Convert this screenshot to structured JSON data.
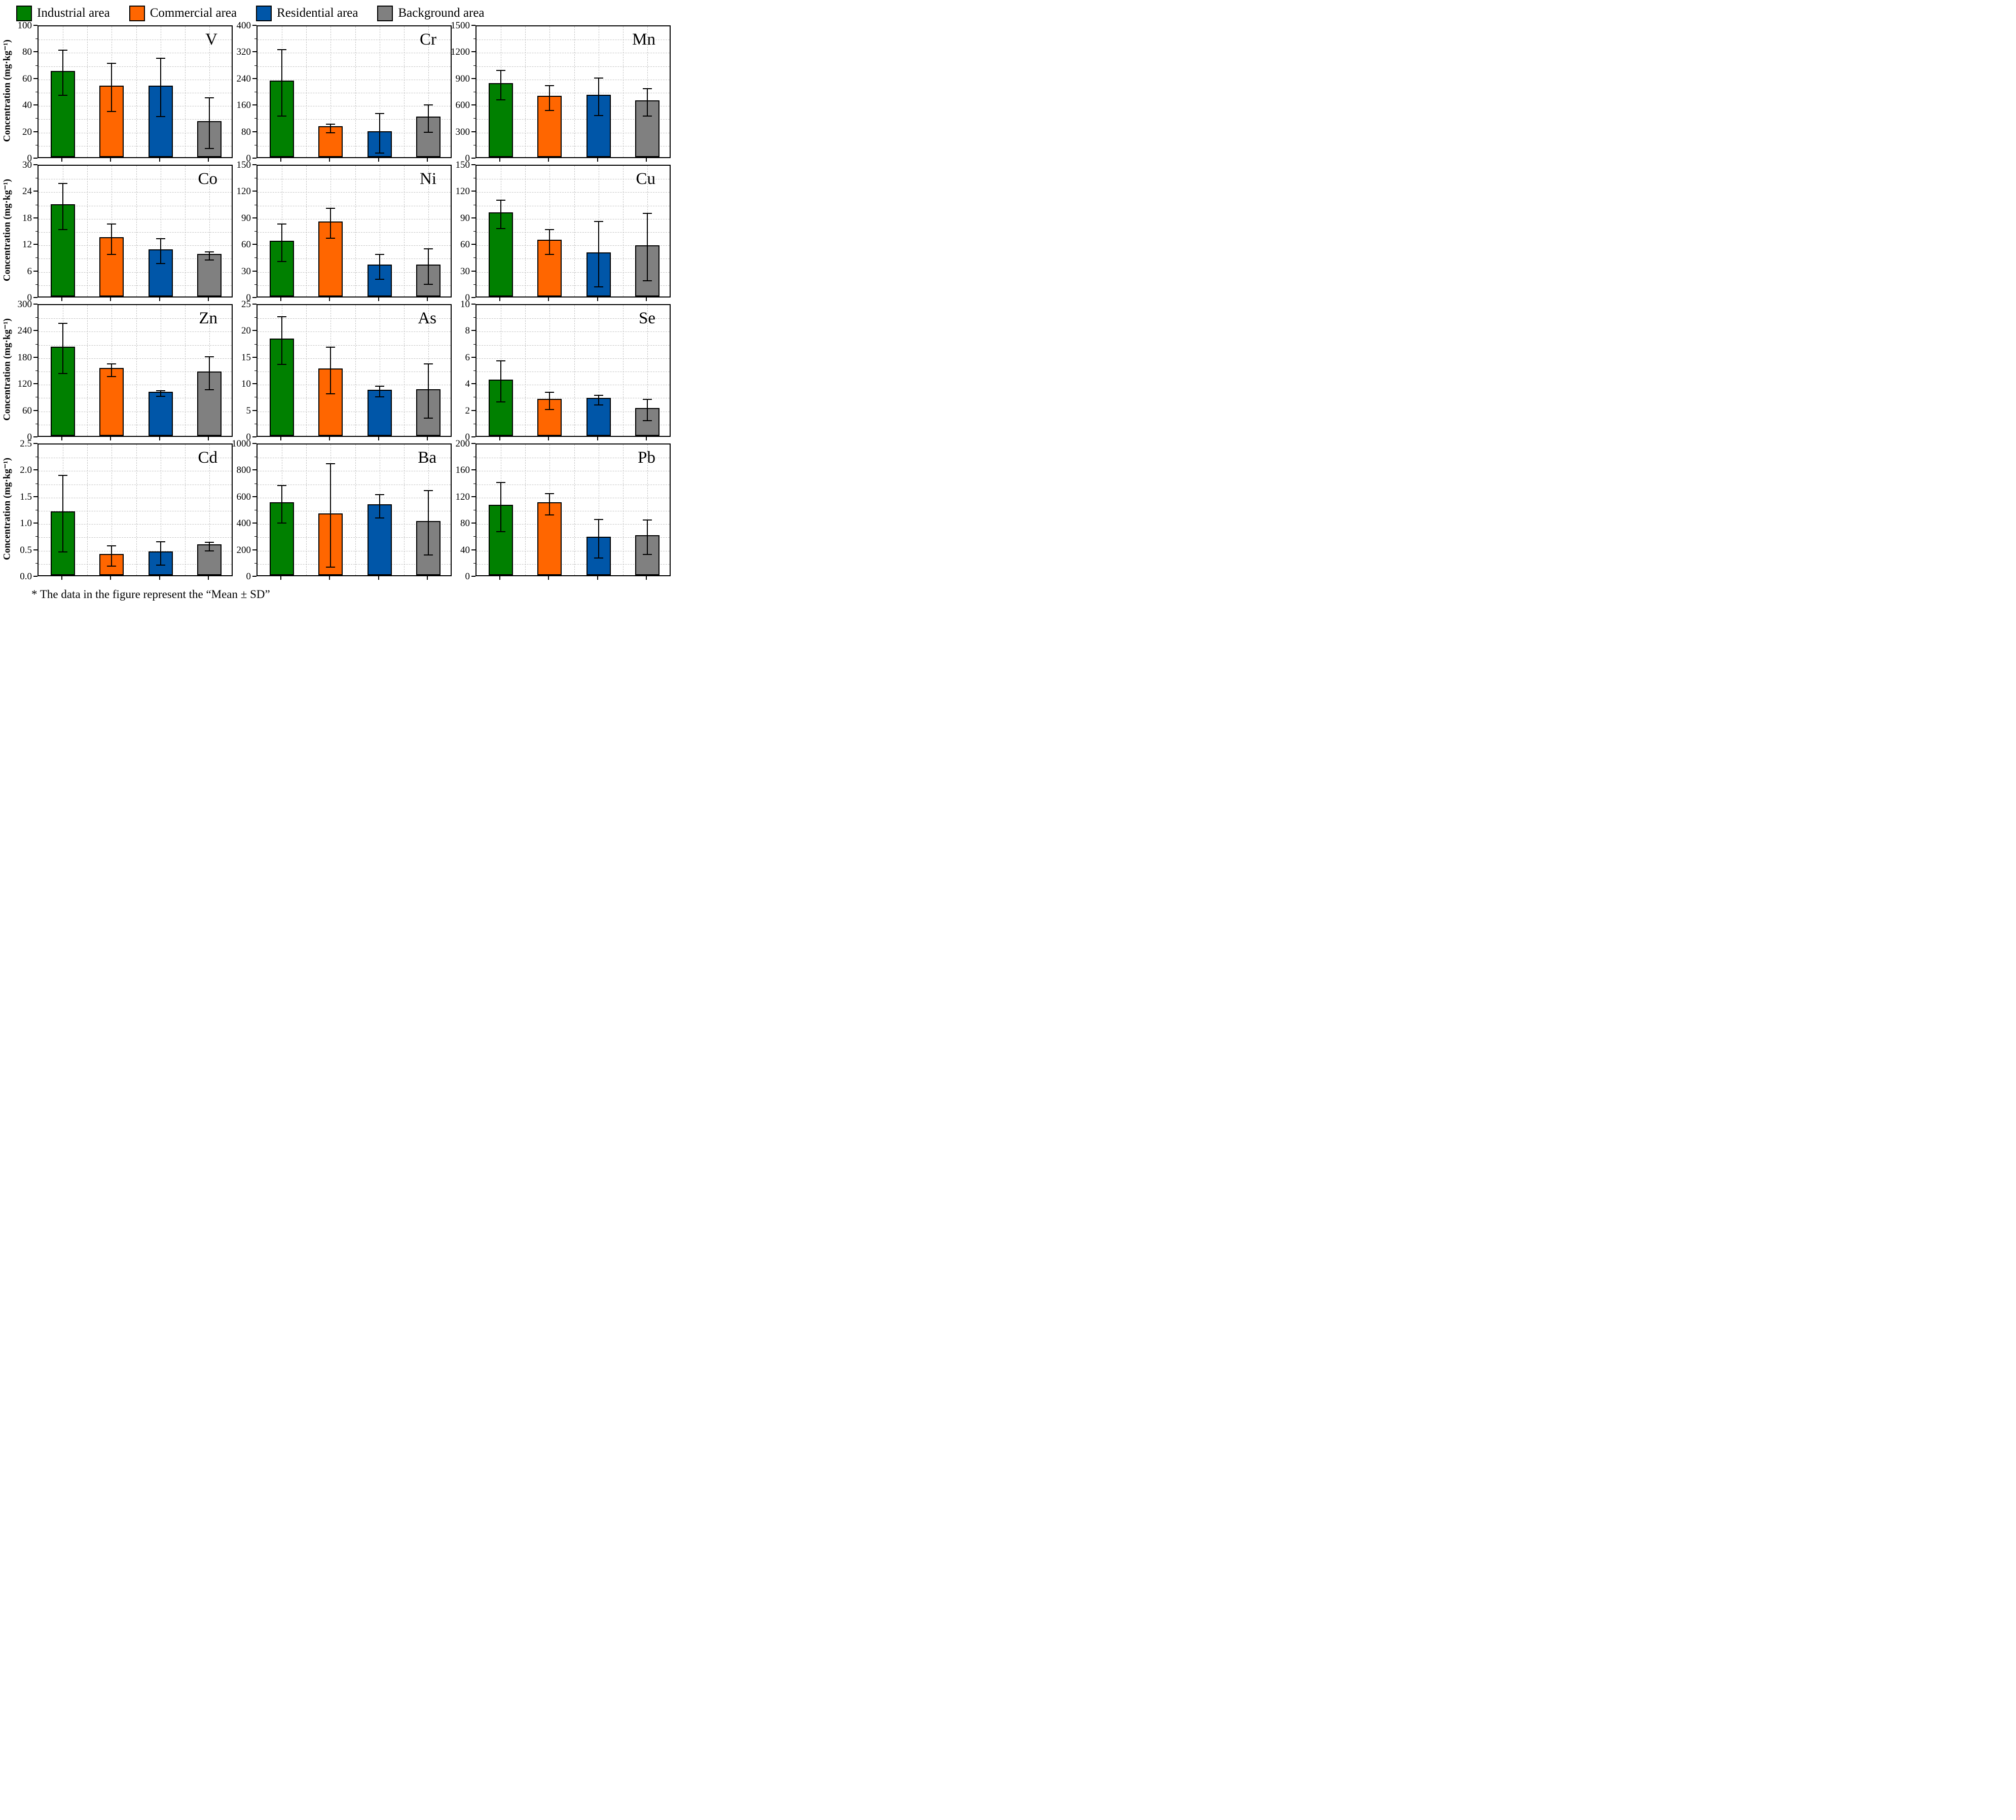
{
  "legend": {
    "items": [
      {
        "label": "Industrial area",
        "color": "#008000"
      },
      {
        "label": "Commercial area",
        "color": "#FF6600"
      },
      {
        "label": "Residential area",
        "color": "#0056A8"
      },
      {
        "label": "Background area",
        "color": "#808080"
      }
    ]
  },
  "axis": {
    "y_label": "Concentration (mg·kg⁻¹)"
  },
  "footnote": "* The data in the figure represent the “Mean ± SD”",
  "categories": [
    "Industrial area",
    "Commercial area",
    "Residential area",
    "Background area"
  ],
  "chart_data": [
    {
      "type": "bar",
      "element": "V",
      "ylim": [
        0,
        100
      ],
      "yticks": [
        0,
        20,
        40,
        60,
        80,
        100
      ],
      "ytick_labels": [
        "0",
        "20",
        "40",
        "60",
        "80",
        "100"
      ],
      "means": [
        65,
        54,
        54,
        27
      ],
      "sds": [
        17,
        18,
        22,
        19
      ]
    },
    {
      "type": "bar",
      "element": "Cr",
      "ylim": [
        0,
        400
      ],
      "yticks": [
        0,
        80,
        160,
        240,
        320,
        400
      ],
      "ytick_labels": [
        "0",
        "80",
        "160",
        "240",
        "320",
        "400"
      ],
      "means": [
        230,
        93,
        78,
        122
      ],
      "sds": [
        100,
        13,
        60,
        41
      ]
    },
    {
      "type": "bar",
      "element": "Mn",
      "ylim": [
        0,
        1500
      ],
      "yticks": [
        0,
        300,
        600,
        900,
        1200,
        1500
      ],
      "ytick_labels": [
        "0",
        "300",
        "600",
        "900",
        "1200",
        "1500"
      ],
      "means": [
        835,
        690,
        705,
        640
      ],
      "sds": [
        165,
        140,
        210,
        155
      ]
    },
    {
      "type": "bar",
      "element": "Co",
      "ylim": [
        0,
        30
      ],
      "yticks": [
        0,
        6,
        12,
        18,
        24,
        30
      ],
      "ytick_labels": [
        "0",
        "6",
        "12",
        "18",
        "24",
        "30"
      ],
      "means": [
        20.8,
        13.4,
        10.7,
        9.6
      ],
      "sds": [
        5.2,
        3.4,
        2.8,
        0.9
      ]
    },
    {
      "type": "bar",
      "element": "Ni",
      "ylim": [
        0,
        150
      ],
      "yticks": [
        0,
        30,
        60,
        90,
        120,
        150
      ],
      "ytick_labels": [
        "0",
        "30",
        "60",
        "90",
        "120",
        "150"
      ],
      "means": [
        63,
        85,
        36,
        36
      ],
      "sds": [
        21,
        17,
        14,
        20
      ]
    },
    {
      "type": "bar",
      "element": "Cu",
      "ylim": [
        0,
        150
      ],
      "yticks": [
        0,
        30,
        60,
        90,
        120,
        150
      ],
      "ytick_labels": [
        "0",
        "30",
        "60",
        "90",
        "120",
        "150"
      ],
      "means": [
        95,
        64,
        50,
        58
      ],
      "sds": [
        16,
        14,
        37,
        38
      ]
    },
    {
      "type": "bar",
      "element": "Zn",
      "ylim": [
        0,
        300
      ],
      "yticks": [
        0,
        60,
        120,
        180,
        240,
        300
      ],
      "ytick_labels": [
        "0",
        "60",
        "120",
        "180",
        "240",
        "300"
      ],
      "means": [
        202,
        153,
        100,
        146
      ],
      "sds": [
        57,
        14,
        6,
        37
      ]
    },
    {
      "type": "bar",
      "element": "As",
      "ylim": [
        0,
        25
      ],
      "yticks": [
        0,
        5,
        10,
        15,
        20,
        25
      ],
      "ytick_labels": [
        "0",
        "5",
        "10",
        "15",
        "20",
        "25"
      ],
      "means": [
        18.3,
        12.7,
        8.7,
        8.8
      ],
      "sds": [
        4.5,
        4.4,
        1.0,
        5.1
      ]
    },
    {
      "type": "bar",
      "element": "Se",
      "ylim": [
        0,
        10
      ],
      "yticks": [
        0,
        2,
        4,
        6,
        8,
        10
      ],
      "ytick_labels": [
        "0",
        "2",
        "4",
        "6",
        "8",
        "10"
      ],
      "means": [
        4.25,
        2.8,
        2.85,
        2.1
      ],
      "sds": [
        1.55,
        0.65,
        0.35,
        0.8
      ]
    },
    {
      "type": "bar",
      "element": "Cd",
      "ylim": [
        0,
        2.5
      ],
      "yticks": [
        0,
        0.5,
        1.0,
        1.5,
        2.0,
        2.5
      ],
      "ytick_labels": [
        "0.0",
        "0.5",
        "1.0",
        "1.5",
        "2.0",
        "2.5"
      ],
      "means": [
        1.2,
        0.4,
        0.45,
        0.58
      ],
      "sds": [
        0.72,
        0.19,
        0.22,
        0.08
      ]
    },
    {
      "type": "bar",
      "element": "Ba",
      "ylim": [
        0,
        1000
      ],
      "yticks": [
        0,
        200,
        400,
        600,
        800,
        1000
      ],
      "ytick_labels": [
        "0",
        "200",
        "400",
        "600",
        "800",
        "1000"
      ],
      "means": [
        550,
        465,
        535,
        410
      ],
      "sds": [
        140,
        390,
        88,
        243
      ]
    },
    {
      "type": "bar",
      "element": "Pb",
      "ylim": [
        0,
        200
      ],
      "yticks": [
        0,
        40,
        80,
        120,
        160,
        200
      ],
      "ytick_labels": [
        "0",
        "40",
        "80",
        "120",
        "160",
        "200"
      ],
      "means": [
        106,
        110,
        58,
        60
      ],
      "sds": [
        37,
        16,
        29,
        26
      ]
    }
  ]
}
